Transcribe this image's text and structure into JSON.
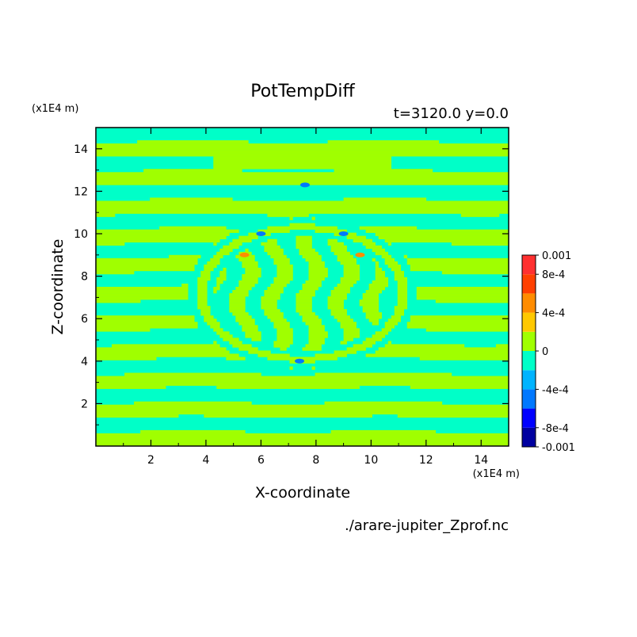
{
  "chart_data": {
    "type": "heatmap",
    "title": "PotTempDiff",
    "subtitle": "t=3120.0 y=0.0",
    "xlabel": "X-coordinate",
    "ylabel": "Z-coordinate",
    "x_unit": "(x1E4 m)",
    "y_unit": "(x1E4 m)",
    "xlim": [
      0,
      15
    ],
    "ylim": [
      0,
      15
    ],
    "xticks": [
      "2",
      "4",
      "6",
      "8",
      "10",
      "12",
      "14"
    ],
    "xtick_values": [
      2,
      4,
      6,
      8,
      10,
      12,
      14
    ],
    "yticks": [
      "2",
      "4",
      "6",
      "8",
      "10",
      "12",
      "14"
    ],
    "ytick_values": [
      2,
      4,
      6,
      8,
      10,
      12,
      14
    ],
    "source": "./arare-jupiter_Zprof.nc",
    "colorbar": {
      "labels": [
        "0.001",
        "8e-4",
        "4e-4",
        "0",
        "-4e-4",
        "-8e-4",
        "-0.001"
      ],
      "label_values": [
        0.001,
        0.0008,
        0.0004,
        0,
        -0.0004,
        -0.0008,
        -0.001
      ],
      "levels": [
        -0.001,
        -0.0008,
        -0.0006,
        -0.0004,
        -0.0002,
        0,
        0.0002,
        0.0004,
        0.0006,
        0.0008,
        0.001
      ],
      "colors": [
        "#0000a0",
        "#0000ff",
        "#0078ff",
        "#00b4ff",
        "#00ffc8",
        "#a0ff00",
        "#ffc800",
        "#ff8c00",
        "#ff4000",
        "#ff3030"
      ]
    },
    "background_value": -0.0001,
    "dominant_values": [
      -0.0001,
      0.0001
    ]
  }
}
